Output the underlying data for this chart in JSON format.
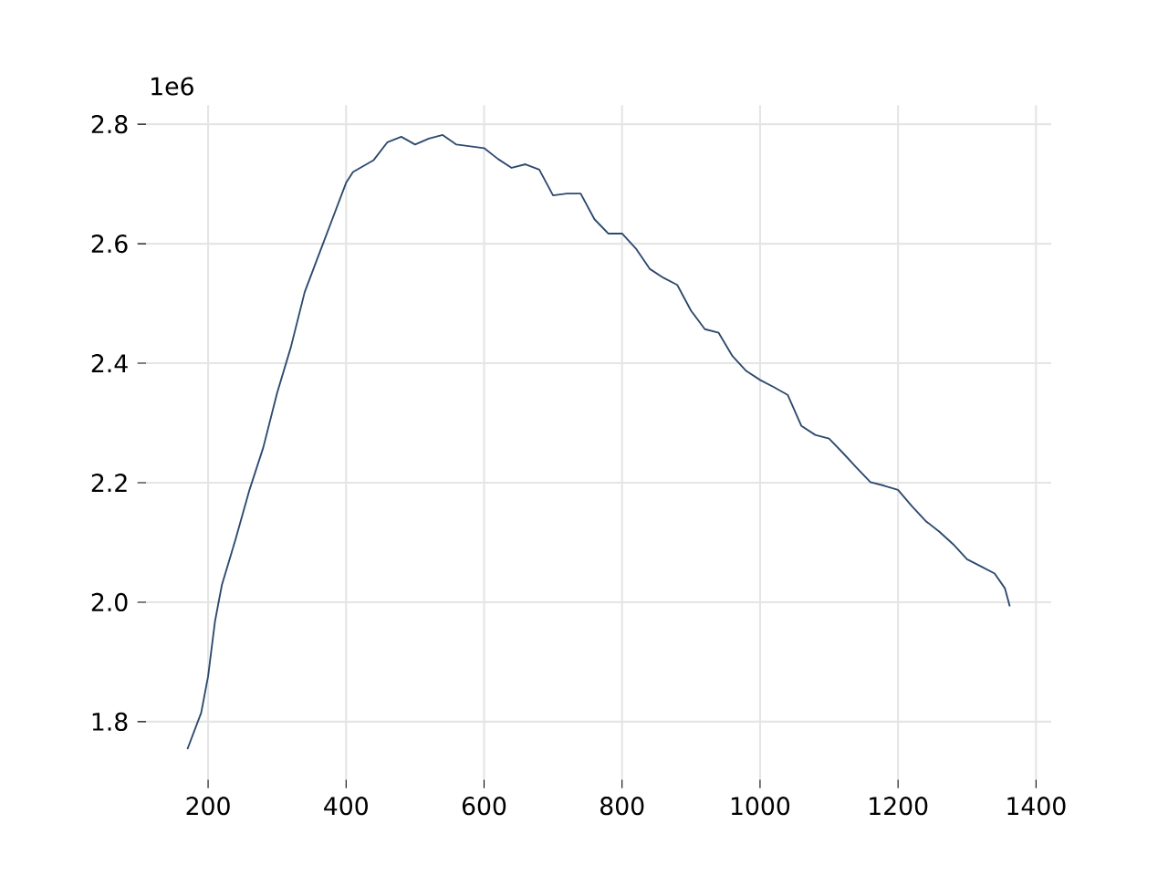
{
  "chart_data": {
    "type": "line",
    "x": [
      170,
      190,
      200,
      210,
      220,
      240,
      260,
      280,
      300,
      320,
      340,
      360,
      380,
      400,
      410,
      440,
      460,
      480,
      500,
      520,
      540,
      560,
      600,
      620,
      640,
      660,
      680,
      700,
      720,
      740,
      760,
      780,
      800,
      820,
      840,
      860,
      880,
      900,
      920,
      940,
      960,
      980,
      1000,
      1020,
      1040,
      1060,
      1080,
      1100,
      1120,
      1140,
      1160,
      1180,
      1200,
      1220,
      1240,
      1260,
      1280,
      1300,
      1320,
      1340,
      1355,
      1362
    ],
    "series": [
      {
        "color": "#2d4a6e",
        "values": [
          1.754,
          1.815,
          1.876,
          1.968,
          2.029,
          2.106,
          2.188,
          2.259,
          2.35,
          2.427,
          2.519,
          2.58,
          2.641,
          2.702,
          2.72,
          2.74,
          2.77,
          2.779,
          2.766,
          2.776,
          2.782,
          2.766,
          2.76,
          2.742,
          2.727,
          2.733,
          2.724,
          2.681,
          2.684,
          2.684,
          2.641,
          2.617,
          2.617,
          2.592,
          2.558,
          2.543,
          2.531,
          2.488,
          2.457,
          2.451,
          2.412,
          2.387,
          2.372,
          2.36,
          2.347,
          2.295,
          2.28,
          2.274,
          2.25,
          2.225,
          2.201,
          2.195,
          2.188,
          2.161,
          2.136,
          2.118,
          2.097,
          2.072,
          2.06,
          2.048,
          2.023,
          1.993
        ]
      }
    ],
    "xlim": [
      110,
      1422
    ],
    "ylim": [
      1.703,
      2.832
    ],
    "xticks": [
      200,
      400,
      600,
      800,
      1000,
      1200,
      1400
    ],
    "yticks": [
      1.8,
      {
        "value": 2.0,
        "label": "2.0"
      },
      2.2,
      2.4,
      2.6,
      2.8
    ],
    "grid": true,
    "annotations": [
      "1e6"
    ]
  }
}
